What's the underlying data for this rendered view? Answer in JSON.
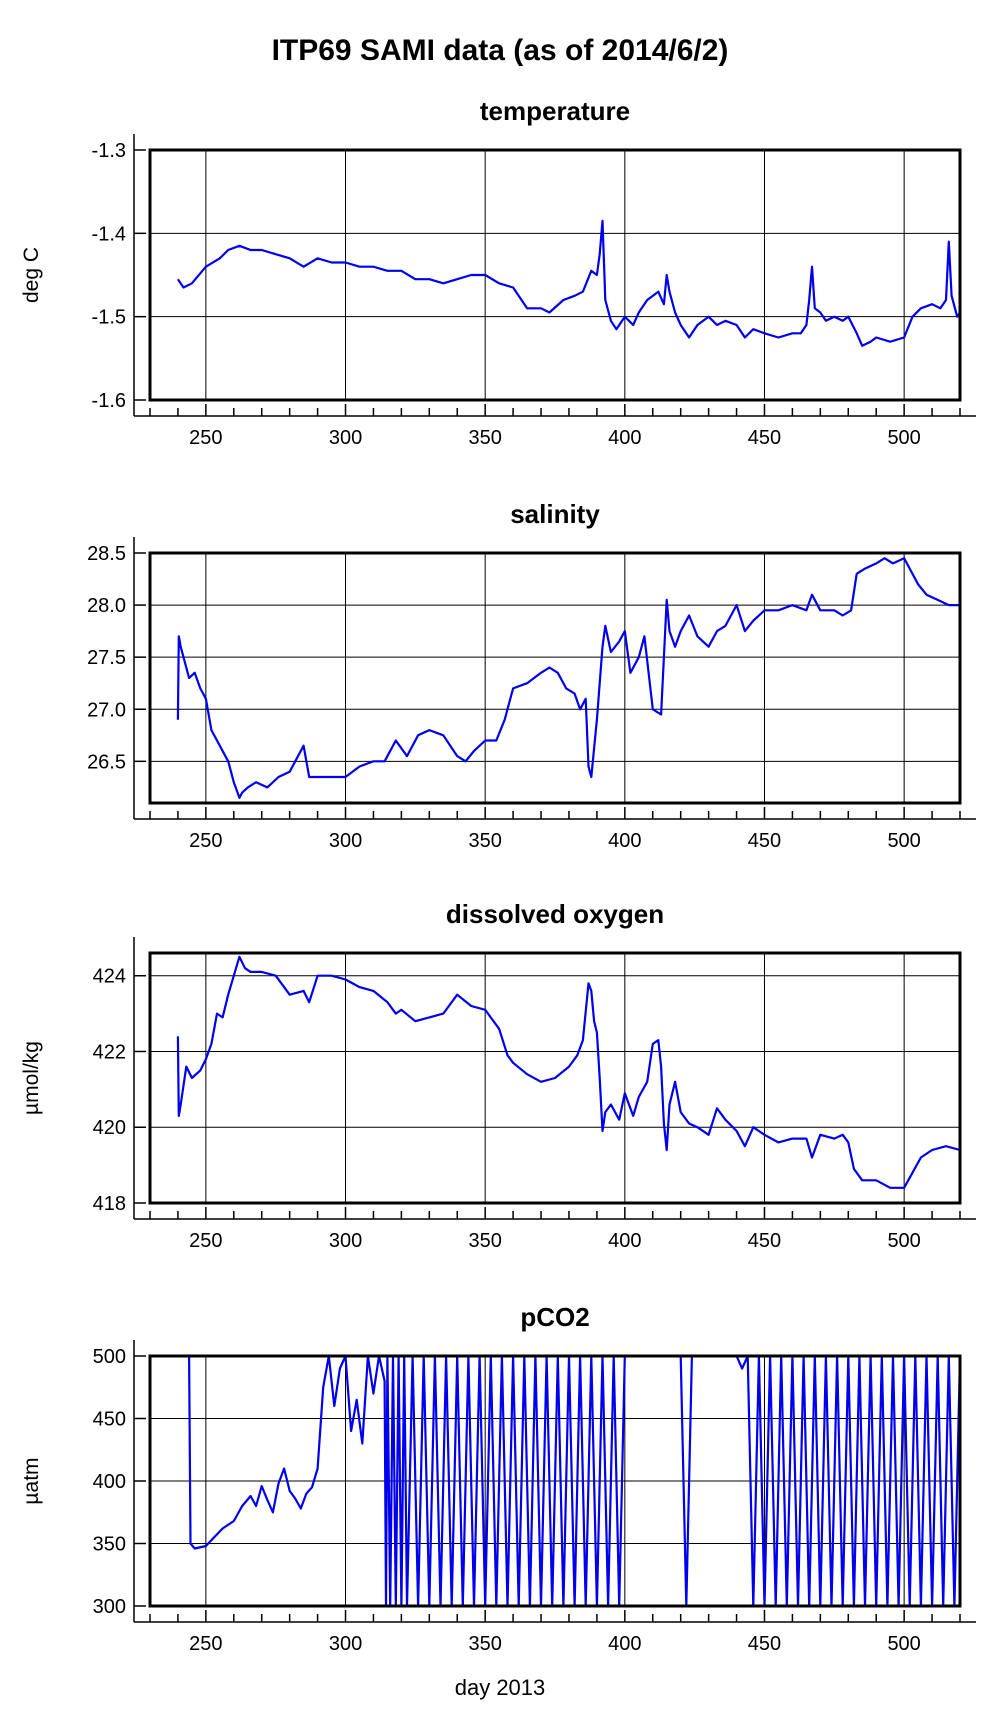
{
  "figure_title": "ITP69 SAMI data (as of 2014/6/2)",
  "xlabel": "day 2013",
  "colors": {
    "series": "#0000ee",
    "grid": "#000000",
    "frame": "#000000"
  },
  "chart_data": [
    {
      "type": "line",
      "title": "temperature",
      "xlabel": "day 2013",
      "ylabel": "deg C",
      "xlim": [
        230,
        520
      ],
      "ylim": [
        -1.6,
        -1.3
      ],
      "xticks": [
        250,
        300,
        350,
        400,
        450,
        500
      ],
      "xtick_labels": [
        "250",
        "300",
        "350",
        "400",
        "450",
        "500"
      ],
      "yticks": [
        -1.6,
        -1.5,
        -1.4,
        -1.3
      ],
      "ytick_labels": [
        "-1.6",
        "-1.5",
        "-1.4",
        "-1.3"
      ],
      "grid": true,
      "x": [
        240,
        242,
        245,
        250,
        255,
        258,
        262,
        266,
        270,
        275,
        280,
        285,
        290,
        295,
        300,
        305,
        310,
        315,
        320,
        325,
        330,
        335,
        340,
        345,
        350,
        355,
        360,
        365,
        370,
        373,
        378,
        382,
        385,
        388,
        390,
        391,
        392,
        393,
        395,
        397,
        400,
        403,
        405,
        408,
        412,
        414,
        415,
        416,
        418,
        420,
        423,
        426,
        430,
        433,
        436,
        440,
        443,
        446,
        450,
        455,
        460,
        463,
        465,
        466,
        467,
        468,
        470,
        472,
        475,
        478,
        480,
        483,
        485,
        488,
        490,
        495,
        500,
        503,
        506,
        510,
        513,
        515,
        516,
        517,
        519,
        520
      ],
      "y": [
        -1.455,
        -1.465,
        -1.46,
        -1.44,
        -1.43,
        -1.42,
        -1.415,
        -1.42,
        -1.42,
        -1.425,
        -1.43,
        -1.44,
        -1.43,
        -1.435,
        -1.435,
        -1.44,
        -1.44,
        -1.445,
        -1.445,
        -1.455,
        -1.455,
        -1.46,
        -1.455,
        -1.45,
        -1.45,
        -1.46,
        -1.465,
        -1.49,
        -1.49,
        -1.495,
        -1.48,
        -1.475,
        -1.47,
        -1.445,
        -1.45,
        -1.425,
        -1.385,
        -1.48,
        -1.505,
        -1.515,
        -1.5,
        -1.51,
        -1.495,
        -1.48,
        -1.47,
        -1.485,
        -1.45,
        -1.47,
        -1.495,
        -1.51,
        -1.525,
        -1.51,
        -1.5,
        -1.51,
        -1.505,
        -1.51,
        -1.525,
        -1.515,
        -1.52,
        -1.525,
        -1.52,
        -1.52,
        -1.51,
        -1.48,
        -1.44,
        -1.49,
        -1.495,
        -1.505,
        -1.5,
        -1.505,
        -1.5,
        -1.52,
        -1.535,
        -1.53,
        -1.525,
        -1.53,
        -1.525,
        -1.5,
        -1.49,
        -1.485,
        -1.49,
        -1.48,
        -1.41,
        -1.475,
        -1.5,
        -1.495
      ]
    },
    {
      "type": "line",
      "title": "salinity",
      "xlabel": "day 2013",
      "ylabel": "",
      "xlim": [
        230,
        520
      ],
      "ylim": [
        26.1,
        28.5
      ],
      "xticks": [
        250,
        300,
        350,
        400,
        450,
        500
      ],
      "xtick_labels": [
        "250",
        "300",
        "350",
        "400",
        "450",
        "500"
      ],
      "yticks": [
        26.5,
        27.0,
        27.5,
        28.0,
        28.5
      ],
      "ytick_labels": [
        "26.5",
        "27.0",
        "27.5",
        "28.0",
        "28.5"
      ],
      "grid": true,
      "x": [
        240,
        240.3,
        241,
        242,
        244,
        246,
        248,
        250,
        252,
        255,
        258,
        260,
        262,
        263,
        265,
        268,
        272,
        276,
        280,
        283,
        285,
        287,
        290,
        295,
        300,
        305,
        310,
        314,
        318,
        322,
        326,
        330,
        335,
        340,
        343,
        346,
        350,
        354,
        357,
        360,
        365,
        370,
        373,
        376,
        379,
        382,
        384,
        386,
        387,
        388,
        390,
        392,
        393,
        395,
        398,
        400,
        402,
        405,
        407,
        410,
        413,
        414,
        415,
        416,
        418,
        420,
        423,
        426,
        430,
        433,
        436,
        440,
        443,
        446,
        450,
        455,
        460,
        465,
        467,
        470,
        475,
        478,
        481,
        483,
        486,
        490,
        493,
        496,
        500,
        502,
        505,
        508,
        512,
        516,
        520
      ],
      "y": [
        26.9,
        27.7,
        27.6,
        27.5,
        27.3,
        27.35,
        27.2,
        27.1,
        26.8,
        26.65,
        26.5,
        26.3,
        26.15,
        26.2,
        26.25,
        26.3,
        26.25,
        26.35,
        26.4,
        26.55,
        26.65,
        26.35,
        26.35,
        26.35,
        26.35,
        26.45,
        26.5,
        26.5,
        26.7,
        26.55,
        26.75,
        26.8,
        26.75,
        26.55,
        26.5,
        26.6,
        26.7,
        26.7,
        26.9,
        27.2,
        27.25,
        27.35,
        27.4,
        27.35,
        27.2,
        27.15,
        27.0,
        27.1,
        26.45,
        26.35,
        26.9,
        27.6,
        27.8,
        27.55,
        27.65,
        27.75,
        27.35,
        27.5,
        27.7,
        27.0,
        26.95,
        27.5,
        28.05,
        27.75,
        27.6,
        27.75,
        27.9,
        27.7,
        27.6,
        27.75,
        27.8,
        28.0,
        27.75,
        27.85,
        27.95,
        27.95,
        28.0,
        27.95,
        28.1,
        27.95,
        27.95,
        27.9,
        27.95,
        28.3,
        28.35,
        28.4,
        28.45,
        28.4,
        28.45,
        28.35,
        28.2,
        28.1,
        28.05,
        28.0,
        28.0
      ]
    },
    {
      "type": "line",
      "title": "dissolved oxygen",
      "xlabel": "day 2013",
      "ylabel": "µmol/kg",
      "xlim": [
        230,
        520
      ],
      "ylim": [
        418,
        424.6
      ],
      "xticks": [
        250,
        300,
        350,
        400,
        450,
        500
      ],
      "xtick_labels": [
        "250",
        "300",
        "350",
        "400",
        "450",
        "500"
      ],
      "yticks": [
        418,
        420,
        422,
        424
      ],
      "ytick_labels": [
        "418",
        "420",
        "422",
        "424"
      ],
      "grid": true,
      "x": [
        240,
        240.3,
        241,
        243,
        245,
        248,
        250,
        252,
        254,
        256,
        258,
        260,
        262,
        264,
        266,
        270,
        275,
        280,
        285,
        287,
        290,
        295,
        300,
        305,
        310,
        315,
        318,
        320,
        325,
        330,
        335,
        340,
        345,
        350,
        355,
        358,
        360,
        365,
        370,
        375,
        380,
        383,
        385,
        387,
        388,
        389,
        390,
        391,
        392,
        393,
        395,
        398,
        400,
        403,
        405,
        408,
        410,
        412,
        413,
        414,
        415,
        416,
        418,
        420,
        423,
        426,
        430,
        433,
        436,
        440,
        443,
        446,
        450,
        455,
        460,
        465,
        467,
        470,
        475,
        478,
        480,
        482,
        485,
        490,
        495,
        500,
        503,
        506,
        510,
        515,
        520
      ],
      "y": [
        422.4,
        420.3,
        420.6,
        421.6,
        421.3,
        421.5,
        421.8,
        422.2,
        423.0,
        422.9,
        423.5,
        424.0,
        424.5,
        424.2,
        424.1,
        424.1,
        424.0,
        423.5,
        423.6,
        423.3,
        424.0,
        424.0,
        423.9,
        423.7,
        423.6,
        423.3,
        423.0,
        423.1,
        422.8,
        422.9,
        423.0,
        423.5,
        423.2,
        423.1,
        422.6,
        421.9,
        421.7,
        421.4,
        421.2,
        421.3,
        421.6,
        421.9,
        422.3,
        423.8,
        423.6,
        422.8,
        422.5,
        421.3,
        419.9,
        420.4,
        420.6,
        420.2,
        420.9,
        420.3,
        420.8,
        421.2,
        422.2,
        422.3,
        421.6,
        420.1,
        419.4,
        420.6,
        421.2,
        420.4,
        420.1,
        420.0,
        419.8,
        420.5,
        420.2,
        419.9,
        419.5,
        420.0,
        419.8,
        419.6,
        419.7,
        419.7,
        419.2,
        419.8,
        419.7,
        419.8,
        419.6,
        418.9,
        418.6,
        418.6,
        418.4,
        418.4,
        418.8,
        419.2,
        419.4,
        419.5,
        419.4
      ]
    },
    {
      "type": "line",
      "title": "pCO2",
      "xlabel": "day 2013",
      "ylabel": "µatm",
      "xlim": [
        230,
        520
      ],
      "ylim": [
        300,
        500
      ],
      "xticks": [
        250,
        300,
        350,
        400,
        450,
        500
      ],
      "xtick_labels": [
        "250",
        "300",
        "350",
        "400",
        "450",
        "500"
      ],
      "yticks": [
        300,
        350,
        400,
        450,
        500
      ],
      "ytick_labels": [
        "300",
        "350",
        "400",
        "450",
        "500"
      ],
      "grid": true,
      "x": [
        244,
        244.5,
        246,
        250,
        253,
        256,
        260,
        263,
        266,
        268,
        270,
        272,
        274,
        276,
        278,
        280,
        282,
        284,
        286,
        288,
        290,
        292,
        294,
        296,
        298,
        300,
        302,
        304,
        306,
        308,
        310,
        312,
        314,
        314.5,
        315,
        316,
        317,
        318,
        319,
        320,
        321,
        322,
        324,
        326,
        328,
        330,
        332,
        334,
        336,
        338,
        340,
        342,
        344,
        346,
        348,
        350,
        352,
        354,
        356,
        358,
        360,
        362,
        364,
        366,
        368,
        370,
        372,
        374,
        376,
        378,
        380,
        382,
        384,
        386,
        388,
        390,
        392,
        394,
        396,
        398,
        400,
        410,
        420,
        422,
        424,
        426,
        440,
        442,
        444,
        446,
        448,
        450,
        452,
        454,
        456,
        458,
        460,
        462,
        464,
        466,
        468,
        470,
        472,
        474,
        476,
        478,
        480,
        482,
        484,
        486,
        488,
        490,
        492,
        494,
        496,
        498,
        500,
        502,
        504,
        506,
        508,
        510,
        512,
        514,
        516,
        518,
        520
      ],
      "y": [
        500,
        350,
        346,
        348,
        355,
        362,
        368,
        380,
        388,
        380,
        396,
        385,
        375,
        398,
        410,
        392,
        386,
        378,
        390,
        395,
        410,
        475,
        500,
        460,
        490,
        500,
        440,
        465,
        430,
        500,
        470,
        500,
        480,
        300,
        500,
        300,
        500,
        300,
        500,
        300,
        500,
        300,
        500,
        300,
        500,
        300,
        500,
        300,
        500,
        300,
        500,
        300,
        500,
        300,
        500,
        300,
        500,
        300,
        500,
        300,
        500,
        300,
        500,
        300,
        500,
        300,
        500,
        300,
        500,
        300,
        500,
        300,
        500,
        300,
        500,
        300,
        500,
        300,
        500,
        300,
        500,
        500,
        500,
        300,
        500,
        500,
        500,
        490,
        500,
        300,
        500,
        300,
        500,
        300,
        500,
        300,
        500,
        300,
        500,
        300,
        500,
        300,
        500,
        300,
        500,
        300,
        500,
        300,
        500,
        300,
        500,
        300,
        500,
        300,
        500,
        300,
        500,
        300,
        500,
        300,
        500,
        300,
        500,
        300,
        500,
        300,
        500
      ]
    }
  ]
}
